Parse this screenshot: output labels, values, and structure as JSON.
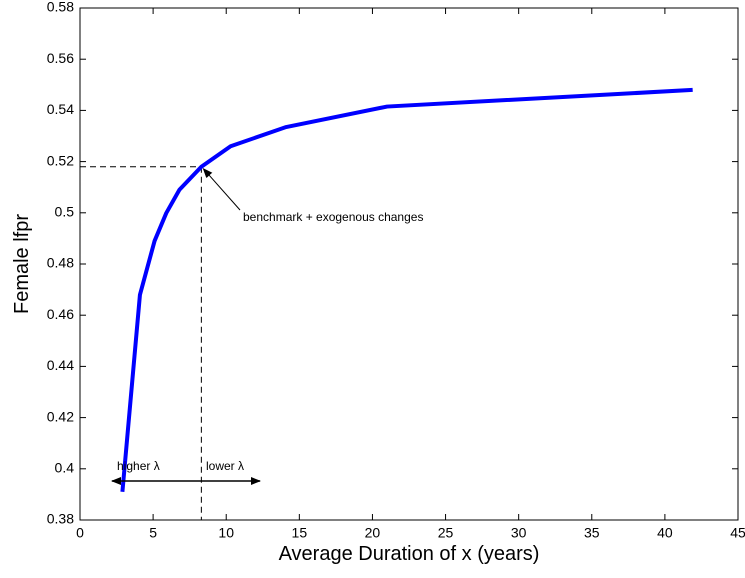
{
  "chart_data": {
    "type": "line",
    "xlabel": "Average Duration of x (years)",
    "ylabel": "Female lfpr",
    "x": [
      2.9,
      4.1,
      5.1,
      5.9,
      6.8,
      8.3,
      10.3,
      14.1,
      21.0,
      41.9
    ],
    "series": [
      {
        "color": "#0000ff",
        "values": [
          0.391,
          0.468,
          0.489,
          0.4999,
          0.509,
          0.518,
          0.526,
          0.5335,
          0.5415,
          0.548
        ]
      }
    ],
    "benchmark": {
      "x": 8.3,
      "y": 0.518
    },
    "annotations": {
      "benchmark": "benchmark + exogenous changes",
      "higher": "higher λ",
      "lower": "lower λ"
    },
    "xlim": [
      0,
      45
    ],
    "xticks": [
      0,
      5,
      10,
      15,
      20,
      25,
      30,
      35,
      40,
      45
    ],
    "ylim": [
      0.38,
      0.58
    ],
    "yticks": [
      0.38,
      0.4,
      0.42,
      0.44,
      0.46,
      0.48,
      0.5,
      0.52,
      0.54,
      0.56,
      0.58
    ],
    "grid": false
  }
}
